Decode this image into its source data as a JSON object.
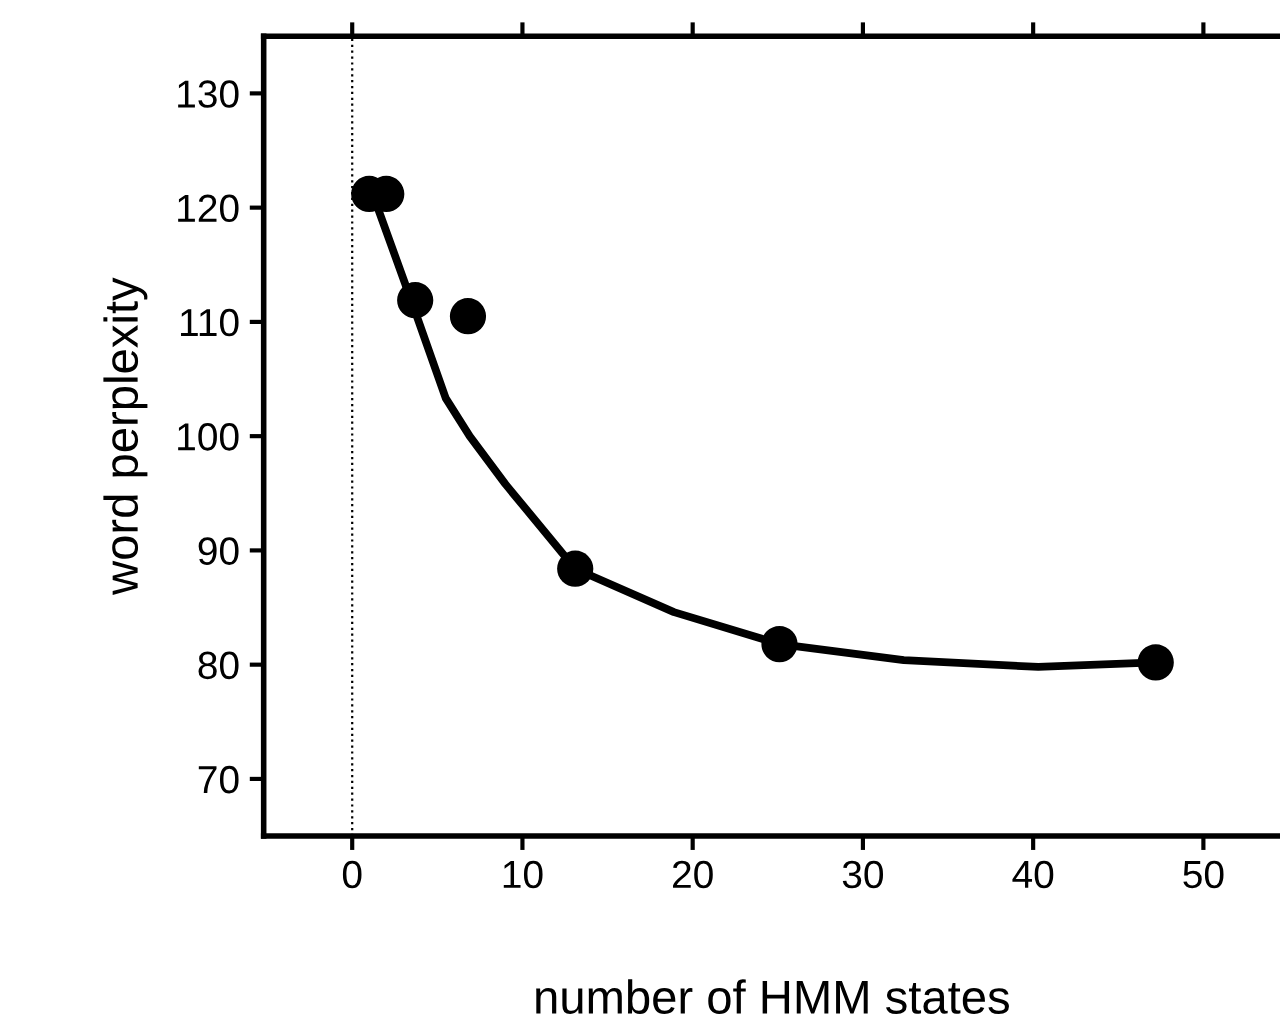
{
  "chart_data": {
    "type": "scatter",
    "xlabel": "number of HMM states",
    "ylabel": "word perplexity",
    "series": [
      {
        "marker": "circle",
        "color": "#000000",
        "x": [
          1,
          2,
          3.7,
          6.8,
          13.1,
          25.1,
          47.2
        ],
        "values": [
          121.2,
          121.2,
          111.9,
          110.5,
          88.4,
          81.8,
          80.2
        ]
      },
      {
        "type": "line",
        "marker": "none",
        "color": "#000000",
        "x": [
          1.4,
          3.7,
          5.5,
          6.9,
          9.0,
          13.1,
          18.9,
          25.1,
          32.4,
          40.3,
          47.2
        ],
        "values": [
          120.4,
          110.9,
          103.3,
          100,
          95.8,
          88.4,
          84.6,
          81.8,
          80.4,
          79.8,
          80.2
        ]
      }
    ],
    "line_style": "solid",
    "xlim": [
      -5.2,
      54.5
    ],
    "xticks": [
      0,
      10,
      20,
      30,
      40,
      50
    ],
    "ylim": [
      65,
      135
    ],
    "yticks": [
      70,
      80,
      90,
      100,
      110,
      120,
      130
    ],
    "ref_lines": [
      {
        "axis": "x",
        "value": 0,
        "color": "#000000",
        "line_style": "dotted"
      }
    ],
    "grid": false,
    "legend": false
  }
}
